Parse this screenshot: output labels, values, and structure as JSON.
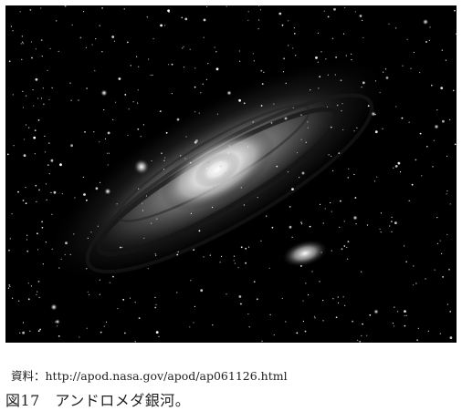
{
  "figure": {
    "source_text": "資料：http://apod.nasa.gov/apod/ap061126.html",
    "caption_text": "図17　アンドロメダ銀河。"
  },
  "colors": {
    "background": "#ffffff",
    "photo_background": "#000000",
    "text": "#222222"
  }
}
